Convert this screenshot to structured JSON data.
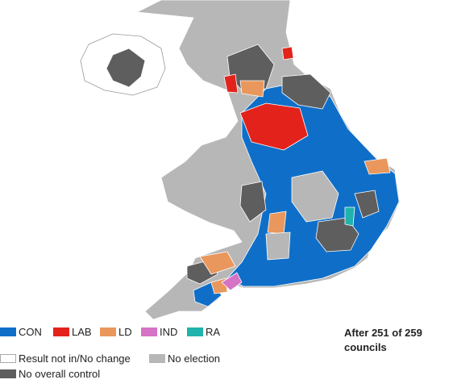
{
  "legend": [
    {
      "label": "CON",
      "color": "#0f6fc8"
    },
    {
      "label": "LAB",
      "color": "#e3231b"
    },
    {
      "label": "LD",
      "color": "#e9975d"
    },
    {
      "label": "IND",
      "color": "#d573c5"
    },
    {
      "label": "RA",
      "color": "#1fb3ab"
    },
    {
      "label": "Result not in/No change",
      "color": "#ffffff"
    },
    {
      "label": "No election",
      "color": "#b7b7b7"
    },
    {
      "label": "No overall control",
      "color": "#5e5e5e"
    }
  ],
  "status": "After 251 of 259 councils"
}
